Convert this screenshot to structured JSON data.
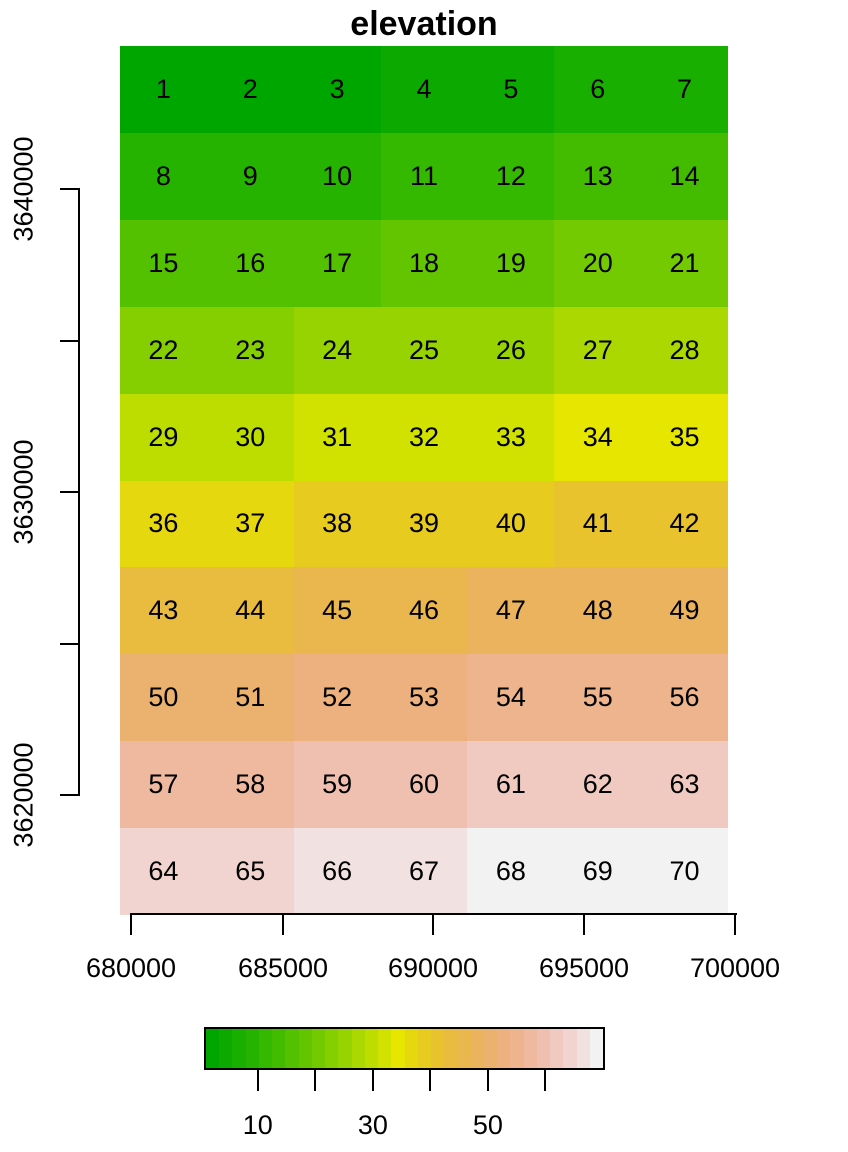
{
  "chart_data": {
    "type": "heatmap",
    "title": "elevation",
    "xlabel": "",
    "ylabel": "",
    "ncol": 7,
    "nrow": 10,
    "values": [
      [
        1,
        2,
        3,
        4,
        5,
        6,
        7
      ],
      [
        8,
        9,
        10,
        11,
        12,
        13,
        14
      ],
      [
        15,
        16,
        17,
        18,
        19,
        20,
        21
      ],
      [
        22,
        23,
        24,
        25,
        26,
        27,
        28
      ],
      [
        29,
        30,
        31,
        32,
        33,
        34,
        35
      ],
      [
        36,
        37,
        38,
        39,
        40,
        41,
        42
      ],
      [
        43,
        44,
        45,
        46,
        47,
        48,
        49
      ],
      [
        50,
        51,
        52,
        53,
        54,
        55,
        56
      ],
      [
        57,
        58,
        59,
        60,
        61,
        62,
        63
      ],
      [
        64,
        65,
        66,
        67,
        68,
        69,
        70
      ]
    ],
    "x_ticks": [
      {
        "label": "680000",
        "px": 131
      },
      {
        "label": "685000",
        "px": 283
      },
      {
        "label": "690000",
        "px": 433
      },
      {
        "label": "695000",
        "px": 584
      },
      {
        "label": "700000",
        "px": 735
      }
    ],
    "y_ticks": [
      {
        "label": "3640000",
        "px": 189,
        "labeled": true
      },
      {
        "label": "3635000",
        "px": 341,
        "labeled": false
      },
      {
        "label": "3630000",
        "px": 492,
        "labeled": true
      },
      {
        "label": "3625000",
        "px": 644,
        "labeled": false
      },
      {
        "label": "3620000",
        "px": 795,
        "labeled": true
      }
    ],
    "value_range": [
      1,
      70
    ],
    "legend": {
      "position": "bottom",
      "ticks": [
        {
          "value": 10,
          "label": "10"
        },
        {
          "value": 20,
          "label": ""
        },
        {
          "value": 30,
          "label": "30"
        },
        {
          "value": 40,
          "label": ""
        },
        {
          "value": 50,
          "label": "50"
        },
        {
          "value": 60,
          "label": ""
        }
      ],
      "palette": [
        "#00A600",
        "#0CAA00",
        "#19AF00",
        "#26B300",
        "#35B800",
        "#43BC00",
        "#53C100",
        "#63C500",
        "#74CA00",
        "#85CF00",
        "#97D300",
        "#AAD800",
        "#BDDC00",
        "#D1E100",
        "#E6E600",
        "#E6D80F",
        "#E7CC1F",
        "#E8C32E",
        "#E9BB3E",
        "#EAB64E",
        "#EBB35E",
        "#EBB16E",
        "#ECB17E",
        "#EDB48E",
        "#EEB99F",
        "#EFC0AF",
        "#F0CAC0",
        "#F1D4D0",
        "#F1E2E1",
        "#F2F2F2"
      ]
    },
    "grid": false
  }
}
